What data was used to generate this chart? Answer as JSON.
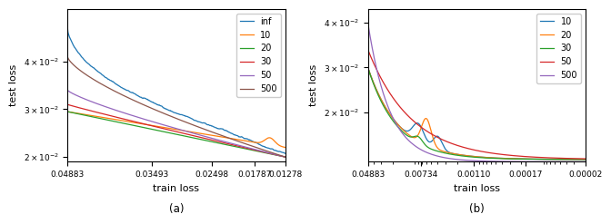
{
  "plot_a": {
    "title": "(a)",
    "xlabel": "train loss",
    "ylabel": "test loss",
    "legend_labels": [
      "inf",
      "10",
      "20",
      "30",
      "50",
      "500"
    ],
    "colors": [
      "#1f77b4",
      "#ff7f0e",
      "#2ca02c",
      "#d62728",
      "#9467bd",
      "#8c564b"
    ],
    "xlim": [
      0.04883,
      0.01278
    ],
    "ylim": [
      0.019,
      0.051
    ],
    "xticks": [
      0.04883,
      0.03493,
      0.02498,
      0.01787,
      0.01278
    ],
    "xtick_labels": [
      "0.04883",
      "0.03493",
      "0.02498",
      "0.01787",
      "0.01278"
    ],
    "yticks": [
      0.02,
      0.03,
      0.04
    ]
  },
  "plot_b": {
    "title": "(b)",
    "xlabel": "train loss",
    "ylabel": "test loss",
    "legend_labels": [
      "10",
      "20",
      "30",
      "50",
      "500"
    ],
    "colors": [
      "#1f77b4",
      "#ff7f0e",
      "#2ca02c",
      "#d62728",
      "#9467bd"
    ],
    "xlim_log": [
      -10.8198,
      -1.3218
    ],
    "xlim": [
      2e-05,
      0.04883
    ],
    "ylim": [
      0.009,
      0.043
    ],
    "xticks": [
      0.04883,
      0.00734,
      0.0011,
      0.00017,
      2e-05
    ],
    "xtick_labels": [
      "0.04883",
      "0.00734",
      "0.00110",
      "0.00017",
      "0.00002"
    ],
    "yticks": [
      0.02,
      0.03,
      0.04
    ]
  }
}
